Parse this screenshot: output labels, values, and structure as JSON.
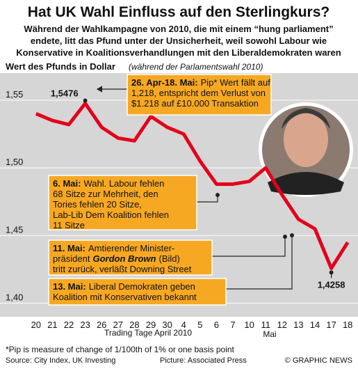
{
  "chart_data": {
    "type": "line",
    "title": "Hat UK Wahl Einfluss auf den Sterlingkurs?",
    "subtitle": [
      "Während der Wahlkampagne von 2010, die mit einem “hung parliament”",
      "endete, litt das Pfund unter der Unsicherheit, weil sowohl Labour wie",
      "Konservative in Koalitionsverhandlungen mit den Liberaldemokraten waren"
    ],
    "y_label": "Wert des Pfunds in Dollar",
    "y_label_note": "(während der Parlamentswahl 2010)",
    "x_label": "Trading Tage April 2010",
    "x_label_2": "Mai",
    "categories": [
      "20",
      "21",
      "22",
      "23",
      "26",
      "27",
      "28",
      "29",
      "30",
      "4",
      "5",
      "6",
      "7",
      "10",
      "11",
      "12",
      "13",
      "14",
      "17",
      "18"
    ],
    "series": [
      {
        "name": "Pfund in Dollar",
        "color": "#e2001a",
        "values": [
          1.54,
          1.535,
          1.532,
          1.5476,
          1.53,
          1.522,
          1.52,
          1.538,
          1.53,
          1.525,
          1.505,
          1.488,
          1.488,
          1.49,
          1.5,
          1.48,
          1.462,
          1.455,
          1.4258,
          1.445
        ],
        "value_labels": [
          null,
          null,
          null,
          "1,5476",
          null,
          null,
          null,
          null,
          null,
          null,
          null,
          null,
          null,
          null,
          null,
          null,
          null,
          null,
          "1,4258",
          null
        ]
      }
    ],
    "ylim": [
      1.39,
      1.57
    ],
    "yticks": [
      {
        "value": 1.4,
        "label": "1,40"
      },
      {
        "value": 1.45,
        "label": "1,45"
      },
      {
        "value": 1.5,
        "label": "1,50"
      },
      {
        "value": 1.55,
        "label": "1,55"
      }
    ],
    "grid": true,
    "annotations": [
      {
        "head": "26. Apr-18. Mai:",
        "lines": [
          "Pip* Wert fällt auf",
          "1,218, entspricht dem Verlust von",
          "$1.218 auf £10.000 Transaktion"
        ]
      },
      {
        "head": "6. Mai:",
        "lines": [
          "Wahl. Labour fehlen",
          "68 Sitze zur Mehrheit, den",
          "Tories fehlen 20 Sitze,",
          "Lab-Lib Dem Koalition fehlen",
          "11 Sitze"
        ]
      },
      {
        "head": "11. Mai:",
        "lines": [
          "Amtierender Minister-",
          [
            "präsident",
            "Gordon Brown",
            "(Bild)"
          ],
          "tritt zurück, verläßt Downing Street"
        ]
      },
      {
        "head": "13. Mai:",
        "lines": [
          "Liberal Demokraten geben",
          "Koalition mit Konservativen bekannt"
        ]
      }
    ],
    "footnote": "*Pip is measure of change of 1/100th of 1% or one basis point",
    "source": "Source: City Index, UK Investing",
    "picture_credit": "Picture: Associated Press",
    "copyright": "© GRAPHIC NEWS"
  }
}
